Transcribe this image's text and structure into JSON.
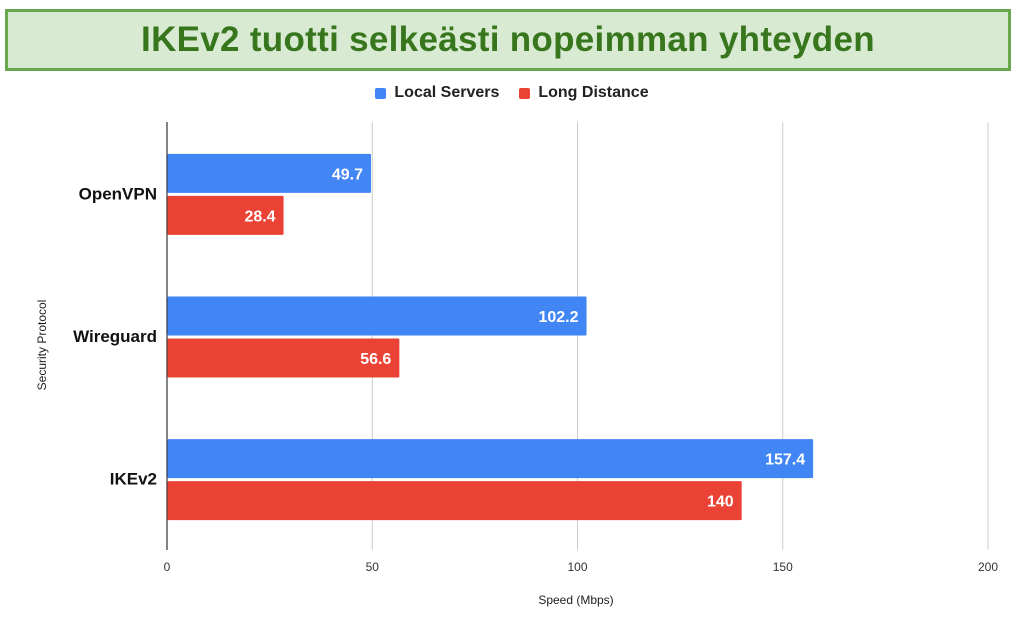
{
  "title": "IKEv2 tuotti selkeästi nopeimman yhteyden",
  "chart_data": {
    "type": "bar",
    "orientation": "horizontal",
    "categories": [
      "OpenVPN",
      "Wireguard",
      "IKEv2"
    ],
    "series": [
      {
        "name": "Local Servers",
        "values": [
          49.7,
          102.2,
          157.4
        ],
        "color": "#4285f4"
      },
      {
        "name": "Long Distance",
        "values": [
          28.4,
          56.6,
          140
        ],
        "color": "#ea4335"
      }
    ],
    "xlabel": "Speed (Mbps)",
    "ylabel": "Security Protocol",
    "xlim": [
      0,
      200
    ],
    "xticks": [
      "0",
      "50",
      "100",
      "150",
      "200"
    ],
    "grid": true,
    "legend_position": "top",
    "data_labels": true
  }
}
